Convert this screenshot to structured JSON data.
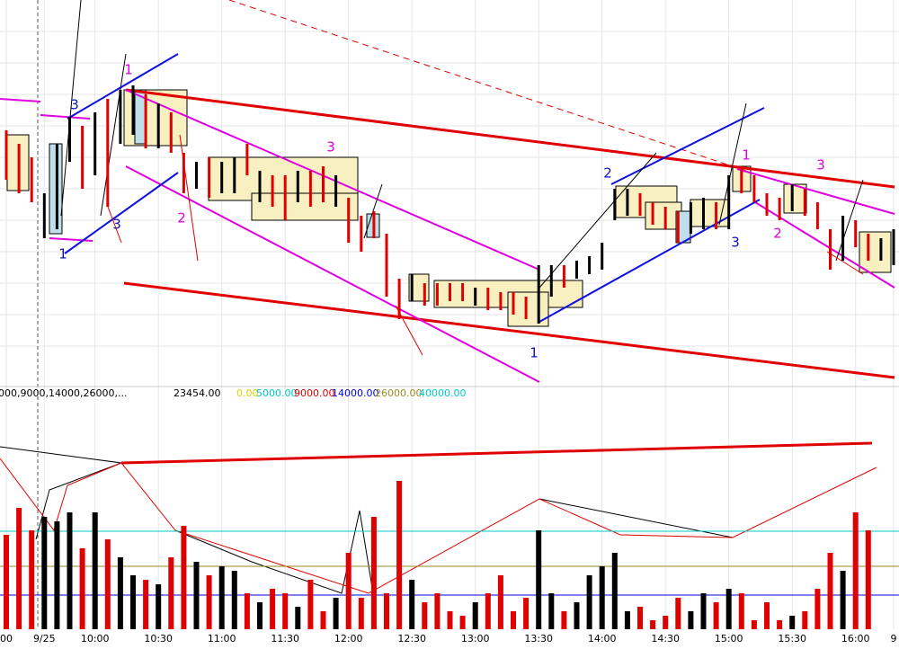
{
  "chart_data": {
    "type": "ohlc",
    "categories": [
      "00",
      null,
      null,
      "9/25",
      null,
      null,
      null,
      "10:00",
      null,
      null,
      null,
      null,
      "10:30",
      null,
      null,
      null,
      null,
      "11:00",
      null,
      null,
      null,
      null,
      "11:30",
      null,
      null,
      null,
      null,
      "12:00",
      null,
      null,
      null,
      null,
      "12:30",
      null,
      null,
      null,
      null,
      "13:00",
      null,
      null,
      null,
      null,
      "13:30",
      null,
      null,
      null,
      null,
      "14:00",
      null,
      null,
      null,
      null,
      "14:30",
      null,
      null,
      null,
      null,
      "15:00",
      null,
      null,
      null,
      null,
      "15:30",
      null,
      null,
      null,
      null,
      "16:00",
      null,
      null,
      "9"
    ],
    "high": [
      265,
      250,
      235,
      195,
      250,
      280,
      270,
      285,
      300,
      310,
      315,
      305,
      295,
      285,
      240,
      230,
      235,
      230,
      235,
      250,
      220,
      215,
      215,
      220,
      220,
      225,
      215,
      190,
      170,
      175,
      150,
      100,
      105,
      95,
      95,
      95,
      95,
      90,
      90,
      85,
      85,
      80,
      115,
      115,
      115,
      120,
      125,
      140,
      200,
      200,
      195,
      185,
      180,
      175,
      185,
      190,
      185,
      215,
      225,
      215,
      195,
      190,
      205,
      200,
      185,
      155,
      170,
      165,
      150,
      145,
      155
    ],
    "low": [
      210,
      195,
      185,
      145,
      155,
      230,
      200,
      215,
      180,
      250,
      260,
      245,
      245,
      240,
      195,
      200,
      190,
      195,
      195,
      215,
      185,
      180,
      165,
      185,
      180,
      185,
      180,
      140,
      130,
      145,
      80,
      55,
      75,
      70,
      70,
      75,
      75,
      70,
      65,
      65,
      60,
      55,
      50,
      80,
      90,
      100,
      105,
      110,
      165,
      170,
      170,
      160,
      155,
      140,
      150,
      155,
      155,
      155,
      195,
      185,
      170,
      165,
      175,
      170,
      155,
      110,
      120,
      135,
      120,
      120,
      115
    ],
    "volume": [
      105,
      135,
      110,
      125,
      120,
      130,
      90,
      130,
      100,
      80,
      60,
      55,
      50,
      80,
      115,
      75,
      60,
      70,
      65,
      40,
      30,
      45,
      40,
      25,
      55,
      20,
      35,
      85,
      35,
      125,
      40,
      165,
      55,
      30,
      40,
      20,
      15,
      30,
      40,
      60,
      20,
      35,
      110,
      40,
      20,
      30,
      60,
      70,
      85,
      20,
      25,
      10,
      15,
      35,
      20,
      40,
      30,
      45,
      40,
      10,
      30,
      10,
      15,
      20,
      45,
      85,
      65,
      130,
      110,
      null,
      null
    ],
    "bar_colors": [
      "#e00000",
      "#e00000",
      "#e00000",
      "#000000",
      "#000000",
      "#000000",
      "#e00000",
      "#000000",
      "#e00000",
      "#000000",
      "#000000",
      "#e00000",
      "#000000",
      "#e00000",
      "#e00000",
      "#000000",
      "#e00000",
      "#000000",
      "#000000",
      "#e00000",
      "#000000",
      "#e00000",
      "#e00000",
      "#000000",
      "#e00000",
      "#e00000",
      "#000000",
      "#e00000",
      "#e00000",
      "#e00000",
      "#e00000",
      "#e00000",
      "#000000",
      "#e00000",
      "#e00000",
      "#e00000",
      "#e00000",
      "#000000",
      "#e00000",
      "#e00000",
      "#e00000",
      "#e00000",
      "#000000",
      "#000000",
      "#e00000",
      "#000000",
      "#000000",
      "#000000",
      "#000000",
      "#000000",
      "#e00000",
      "#e00000",
      "#e00000",
      "#e00000",
      "#000000",
      "#000000",
      "#e00000",
      "#000000",
      "#e00000",
      "#e00000",
      "#e00000",
      "#e00000",
      "#000000",
      "#e00000",
      "#e00000",
      "#e00000",
      "#000000",
      "#e00000",
      "#e00000",
      "#000000",
      "#000000"
    ],
    "ylim": [
      0,
      410
    ],
    "volume_ylim": [
      0,
      255
    ],
    "indicator_labels": [
      {
        "text": "000,9000,14000,26000,...",
        "color": "#000000"
      },
      {
        "text": "23454.00",
        "color": "#000000"
      },
      {
        "text": "0.00",
        "color": "#e0d000"
      },
      {
        "text": "5000.00",
        "color": "#00c8c8"
      },
      {
        "text": "9000.00",
        "color": "#e00000"
      },
      {
        "text": "14000.00",
        "color": "#0000e0"
      },
      {
        "text": "26000.00",
        "color": "#9a8a20"
      },
      {
        "text": "40000.00",
        "color": "#00c8c8"
      }
    ],
    "annotations": [
      {
        "text": "1",
        "color": "#e000e0"
      },
      {
        "text": "3",
        "color": "#1010c0"
      },
      {
        "text": "3",
        "color": "#1010c0"
      },
      {
        "text": "1",
        "color": "#1010c0"
      },
      {
        "text": "2",
        "color": "#e000e0"
      },
      {
        "text": "3",
        "color": "#e000e0"
      },
      {
        "text": "1",
        "color": "#1010c0"
      },
      {
        "text": "2",
        "color": "#1010c0"
      },
      {
        "text": "1",
        "color": "#e000e0"
      },
      {
        "text": "3",
        "color": "#1010c0"
      },
      {
        "text": "3",
        "color": "#e000e0"
      },
      {
        "text": "2",
        "color": "#e000e0"
      }
    ]
  }
}
